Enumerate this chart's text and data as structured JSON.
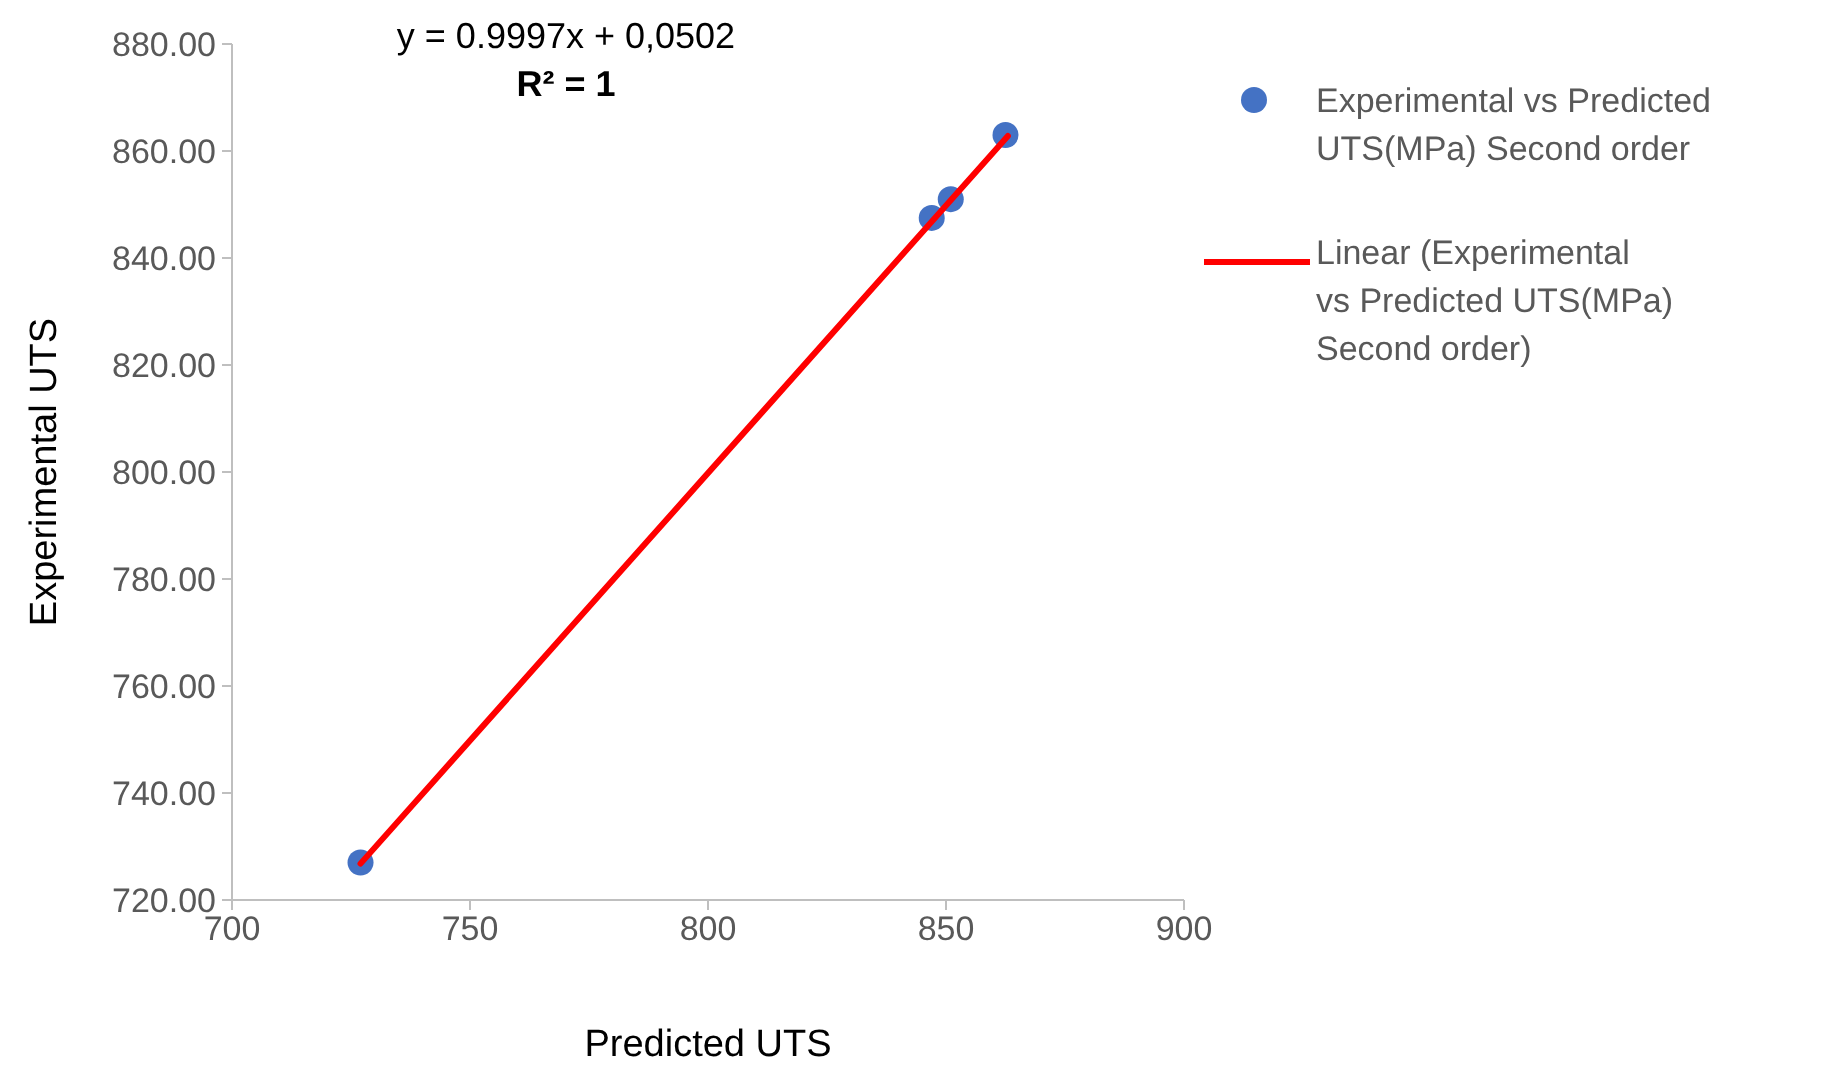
{
  "chart_data": {
    "type": "scatter",
    "xlabel": "Predicted UTS",
    "ylabel": "Experimental UTS",
    "annotations": [
      "y = 0.9997x + 0,0502",
      "R² = 1"
    ],
    "xlim": [
      700,
      900
    ],
    "xticks": [
      700,
      750,
      800,
      850,
      900
    ],
    "ylim": [
      720,
      880
    ],
    "yticks": [
      {
        "value": 720,
        "label": "720.00"
      },
      {
        "value": 740,
        "label": "740.00"
      },
      {
        "value": 760,
        "label": "760.00"
      },
      {
        "value": 780,
        "label": "780.00"
      },
      {
        "value": 800,
        "label": "800.00"
      },
      {
        "value": 820,
        "label": "820.00"
      },
      {
        "value": 840,
        "label": "840.00"
      },
      {
        "value": 860,
        "label": "860.00"
      },
      {
        "value": 880,
        "label": "880.00"
      }
    ],
    "grid": false,
    "legend": "right",
    "series": [
      {
        "name": "Experimental vs Predicted UTS(MPa) Second order",
        "color": "#4472c4",
        "marker": "circle",
        "x": [
          727,
          847,
          851,
          862.5
        ],
        "values": [
          727,
          847.5,
          851,
          863
        ]
      },
      {
        "type": "line",
        "name": "Linear (Experimental vs Predicted UTS(MPa) Second order)",
        "color": "#ff0000",
        "line_style": "solid",
        "marker": "none",
        "x": [
          727,
          863
        ],
        "values": [
          726.8,
          862.8
        ]
      }
    ]
  }
}
